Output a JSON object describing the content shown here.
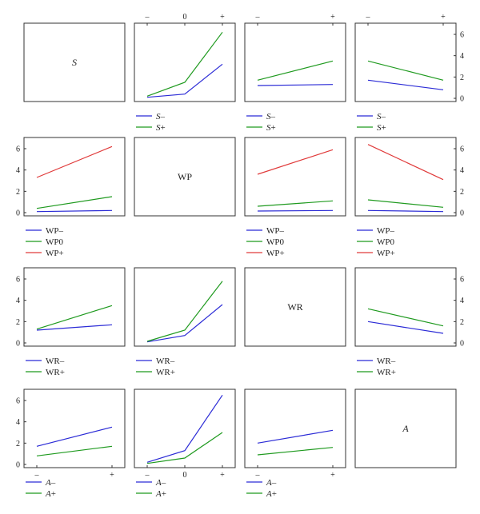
{
  "figure": {
    "variables": [
      "S",
      "WP",
      "WR",
      "A"
    ],
    "colors": {
      "blue": "#2b2bd6",
      "green": "#1f9a1f",
      "red": "#e03a3a",
      "axis": "#333333"
    }
  },
  "chart_data": [
    {
      "id": "r0c0",
      "type": "label",
      "label": "S",
      "italic": true
    },
    {
      "id": "r0c1",
      "type": "line",
      "x": [
        "–",
        "0",
        "+"
      ],
      "top_ticks": true,
      "ylim": [
        0,
        6.6
      ],
      "series": [
        {
          "name": "S–",
          "name_prefix": "S",
          "name_suffix": "–",
          "name_italic": true,
          "color": "#2b2bd6",
          "values": [
            0.1,
            0.4,
            3.2
          ]
        },
        {
          "name": "S+",
          "name_prefix": "S",
          "name_suffix": "+",
          "name_italic": true,
          "color": "#1f9a1f",
          "values": [
            0.2,
            1.5,
            6.2
          ]
        }
      ]
    },
    {
      "id": "r0c2",
      "type": "line",
      "x": [
        "–",
        "+"
      ],
      "top_ticks": true,
      "ylim": [
        0,
        6.6
      ],
      "series": [
        {
          "name": "S–",
          "name_prefix": "S",
          "name_suffix": "–",
          "name_italic": true,
          "color": "#2b2bd6",
          "values": [
            1.2,
            1.3
          ]
        },
        {
          "name": "S+",
          "name_prefix": "S",
          "name_suffix": "+",
          "name_italic": true,
          "color": "#1f9a1f",
          "values": [
            1.7,
            3.5
          ]
        }
      ]
    },
    {
      "id": "r0c3",
      "type": "line",
      "x": [
        "–",
        "+"
      ],
      "top_ticks": true,
      "right_ticks": true,
      "ylim": [
        0,
        6.6
      ],
      "series": [
        {
          "name": "S–",
          "name_prefix": "S",
          "name_suffix": "–",
          "name_italic": true,
          "color": "#2b2bd6",
          "values": [
            1.7,
            0.8
          ]
        },
        {
          "name": "S+",
          "name_prefix": "S",
          "name_suffix": "+",
          "name_italic": true,
          "color": "#1f9a1f",
          "values": [
            3.5,
            1.7
          ]
        }
      ]
    },
    {
      "id": "r1c0",
      "type": "line",
      "x": [
        "–",
        "+"
      ],
      "left_ticks": true,
      "ylim": [
        0,
        6.6
      ],
      "series": [
        {
          "name": "WP–",
          "name_prefix": "WP",
          "name_suffix": "–",
          "color": "#2b2bd6",
          "values": [
            0.1,
            0.2
          ]
        },
        {
          "name": "WP0",
          "name_prefix": "WP",
          "name_suffix": "0",
          "color": "#1f9a1f",
          "values": [
            0.4,
            1.5
          ]
        },
        {
          "name": "WP+",
          "name_prefix": "WP",
          "name_suffix": "+",
          "color": "#e03a3a",
          "values": [
            3.3,
            6.2
          ]
        }
      ]
    },
    {
      "id": "r1c1",
      "type": "label",
      "label": "WP",
      "italic": false
    },
    {
      "id": "r1c2",
      "type": "line",
      "x": [
        "–",
        "+"
      ],
      "ylim": [
        0,
        6.6
      ],
      "series": [
        {
          "name": "WP–",
          "name_prefix": "WP",
          "name_suffix": "–",
          "color": "#2b2bd6",
          "values": [
            0.15,
            0.2
          ]
        },
        {
          "name": "WP0",
          "name_prefix": "WP",
          "name_suffix": "0",
          "color": "#1f9a1f",
          "values": [
            0.6,
            1.1
          ]
        },
        {
          "name": "WP+",
          "name_prefix": "WP",
          "name_suffix": "+",
          "color": "#e03a3a",
          "values": [
            3.6,
            5.9
          ]
        }
      ]
    },
    {
      "id": "r1c3",
      "type": "line",
      "x": [
        "–",
        "+"
      ],
      "right_ticks": true,
      "ylim": [
        0,
        6.6
      ],
      "series": [
        {
          "name": "WP–",
          "name_prefix": "WP",
          "name_suffix": "–",
          "color": "#2b2bd6",
          "values": [
            0.2,
            0.1
          ]
        },
        {
          "name": "WP0",
          "name_prefix": "WP",
          "name_suffix": "0",
          "color": "#1f9a1f",
          "values": [
            1.2,
            0.5
          ]
        },
        {
          "name": "WP+",
          "name_prefix": "WP",
          "name_suffix": "+",
          "color": "#e03a3a",
          "values": [
            6.4,
            3.1
          ]
        }
      ]
    },
    {
      "id": "r2c0",
      "type": "line",
      "x": [
        "–",
        "+"
      ],
      "left_ticks": true,
      "ylim": [
        0,
        6.6
      ],
      "series": [
        {
          "name": "WR–",
          "name_prefix": "WR",
          "name_suffix": "–",
          "color": "#2b2bd6",
          "values": [
            1.2,
            1.7
          ]
        },
        {
          "name": "WR+",
          "name_prefix": "WR",
          "name_suffix": "+",
          "color": "#1f9a1f",
          "values": [
            1.3,
            3.5
          ]
        }
      ]
    },
    {
      "id": "r2c1",
      "type": "line",
      "x": [
        "–",
        "0",
        "+"
      ],
      "ylim": [
        0,
        6.6
      ],
      "series": [
        {
          "name": "WR–",
          "name_prefix": "WR",
          "name_suffix": "–",
          "color": "#2b2bd6",
          "values": [
            0.1,
            0.7,
            3.6
          ]
        },
        {
          "name": "WR+",
          "name_prefix": "WR",
          "name_suffix": "+",
          "color": "#1f9a1f",
          "values": [
            0.15,
            1.2,
            5.8
          ]
        }
      ]
    },
    {
      "id": "r2c2",
      "type": "label",
      "label": "WR",
      "italic": false
    },
    {
      "id": "r2c3",
      "type": "line",
      "x": [
        "–",
        "+"
      ],
      "right_ticks": true,
      "ylim": [
        0,
        6.6
      ],
      "series": [
        {
          "name": "WR–",
          "name_prefix": "WR",
          "name_suffix": "–",
          "color": "#2b2bd6",
          "values": [
            2.0,
            0.9
          ]
        },
        {
          "name": "WR+",
          "name_prefix": "WR",
          "name_suffix": "+",
          "color": "#1f9a1f",
          "values": [
            3.2,
            1.6
          ]
        }
      ]
    },
    {
      "id": "r3c0",
      "type": "line",
      "x": [
        "–",
        "+"
      ],
      "left_ticks": true,
      "bottom_ticks": true,
      "ylim": [
        0,
        6.6
      ],
      "series": [
        {
          "name": "A–",
          "name_prefix": "A",
          "name_suffix": "–",
          "name_italic": true,
          "color": "#2b2bd6",
          "values": [
            1.7,
            3.5
          ]
        },
        {
          "name": "A+",
          "name_prefix": "A",
          "name_suffix": "+",
          "name_italic": true,
          "color": "#1f9a1f",
          "values": [
            0.8,
            1.7
          ]
        }
      ]
    },
    {
      "id": "r3c1",
      "type": "line",
      "x": [
        "–",
        "0",
        "+"
      ],
      "bottom_ticks": true,
      "ylim": [
        0,
        6.6
      ],
      "series": [
        {
          "name": "A–",
          "name_prefix": "A",
          "name_suffix": "–",
          "name_italic": true,
          "color": "#2b2bd6",
          "values": [
            0.2,
            1.3,
            6.5
          ]
        },
        {
          "name": "A+",
          "name_prefix": "A",
          "name_suffix": "+",
          "name_italic": true,
          "color": "#1f9a1f",
          "values": [
            0.1,
            0.6,
            3.0
          ]
        }
      ]
    },
    {
      "id": "r3c2",
      "type": "line",
      "x": [
        "–",
        "+"
      ],
      "bottom_ticks": true,
      "ylim": [
        0,
        6.6
      ],
      "series": [
        {
          "name": "A–",
          "name_prefix": "A",
          "name_suffix": "–",
          "name_italic": true,
          "color": "#2b2bd6",
          "values": [
            2.0,
            3.2
          ]
        },
        {
          "name": "A+",
          "name_prefix": "A",
          "name_suffix": "+",
          "name_italic": true,
          "color": "#1f9a1f",
          "values": [
            0.9,
            1.6
          ]
        }
      ]
    },
    {
      "id": "r3c3",
      "type": "label",
      "label": "A",
      "italic": true
    }
  ],
  "y_tick_labels": [
    "0",
    "2",
    "4",
    "6"
  ],
  "y_tick_values": [
    0,
    2,
    4,
    6
  ]
}
